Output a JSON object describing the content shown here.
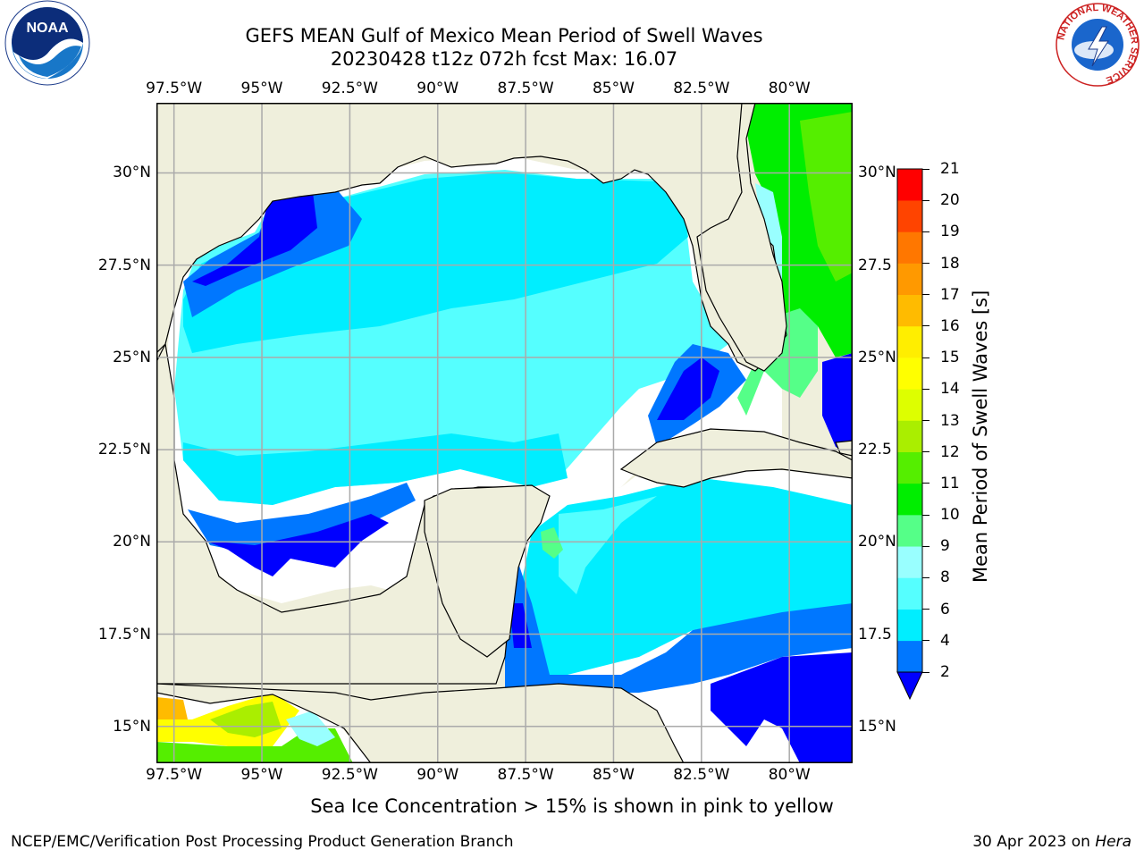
{
  "header": {
    "title": "GEFS MEAN Gulf of Mexico Mean Period of Swell Waves",
    "subtitle": "20230428 t12z 072h fcst   Max: 16.07"
  },
  "axes": {
    "lon_labels": [
      "97.5°W",
      "95°W",
      "92.5°W",
      "90°W",
      "87.5°W",
      "85°W",
      "82.5°W",
      "80°W"
    ],
    "lat_labels_left": [
      "30°N",
      "27.5°N",
      "25°N",
      "22.5°N",
      "20°N",
      "17.5°N",
      "15°N"
    ],
    "lat_labels_right": [
      "30°N",
      "27.5",
      "25°N",
      "22.5",
      "20°N",
      "17.5",
      "15°N"
    ],
    "lon_values": [
      -97.5,
      -95,
      -92.5,
      -90,
      -87.5,
      -85,
      -82.5,
      -80
    ],
    "lat_values": [
      30,
      27.5,
      25,
      22.5,
      20,
      17.5,
      15
    ],
    "lon_range": [
      -98,
      -78.2
    ],
    "lat_range": [
      14,
      31.9
    ]
  },
  "colorbar": {
    "title": "Mean Period of Swell Waves [s]",
    "levels": [
      2,
      4,
      6,
      8,
      9,
      10,
      11,
      12,
      13,
      14,
      15,
      16,
      17,
      18,
      19,
      20,
      21
    ],
    "level_labels": [
      "2",
      "4",
      "6",
      "8",
      "9",
      "10",
      "11",
      "12",
      "13",
      "14",
      "15",
      "16",
      "17",
      "18",
      "19",
      "20",
      "21"
    ],
    "colors": [
      "#0077ff",
      "#00eeff",
      "#55ffff",
      "#99ffff",
      "#55ff88",
      "#00ee00",
      "#55ee00",
      "#aaee00",
      "#ddff00",
      "#ffff00",
      "#ffee00",
      "#ffbb00",
      "#ff9900",
      "#ff7700",
      "#ff4400",
      "#ff0000"
    ],
    "under_color": "#0000ff"
  },
  "colors": {
    "land": "#efefdc",
    "no_data": "#ffffff",
    "grid": "#aaaaaa"
  },
  "logos": {
    "left": "NOAA",
    "right": "NATIONAL WEATHER SERVICE"
  },
  "footer": {
    "note": "Sea Ice Concentration > 15% is shown in pink to yellow",
    "credit_left": "NCEP/EMC/Verification Post Processing Product Generation Branch",
    "credit_right_date": "30 Apr 2023 on ",
    "credit_right_host": "Hera"
  }
}
